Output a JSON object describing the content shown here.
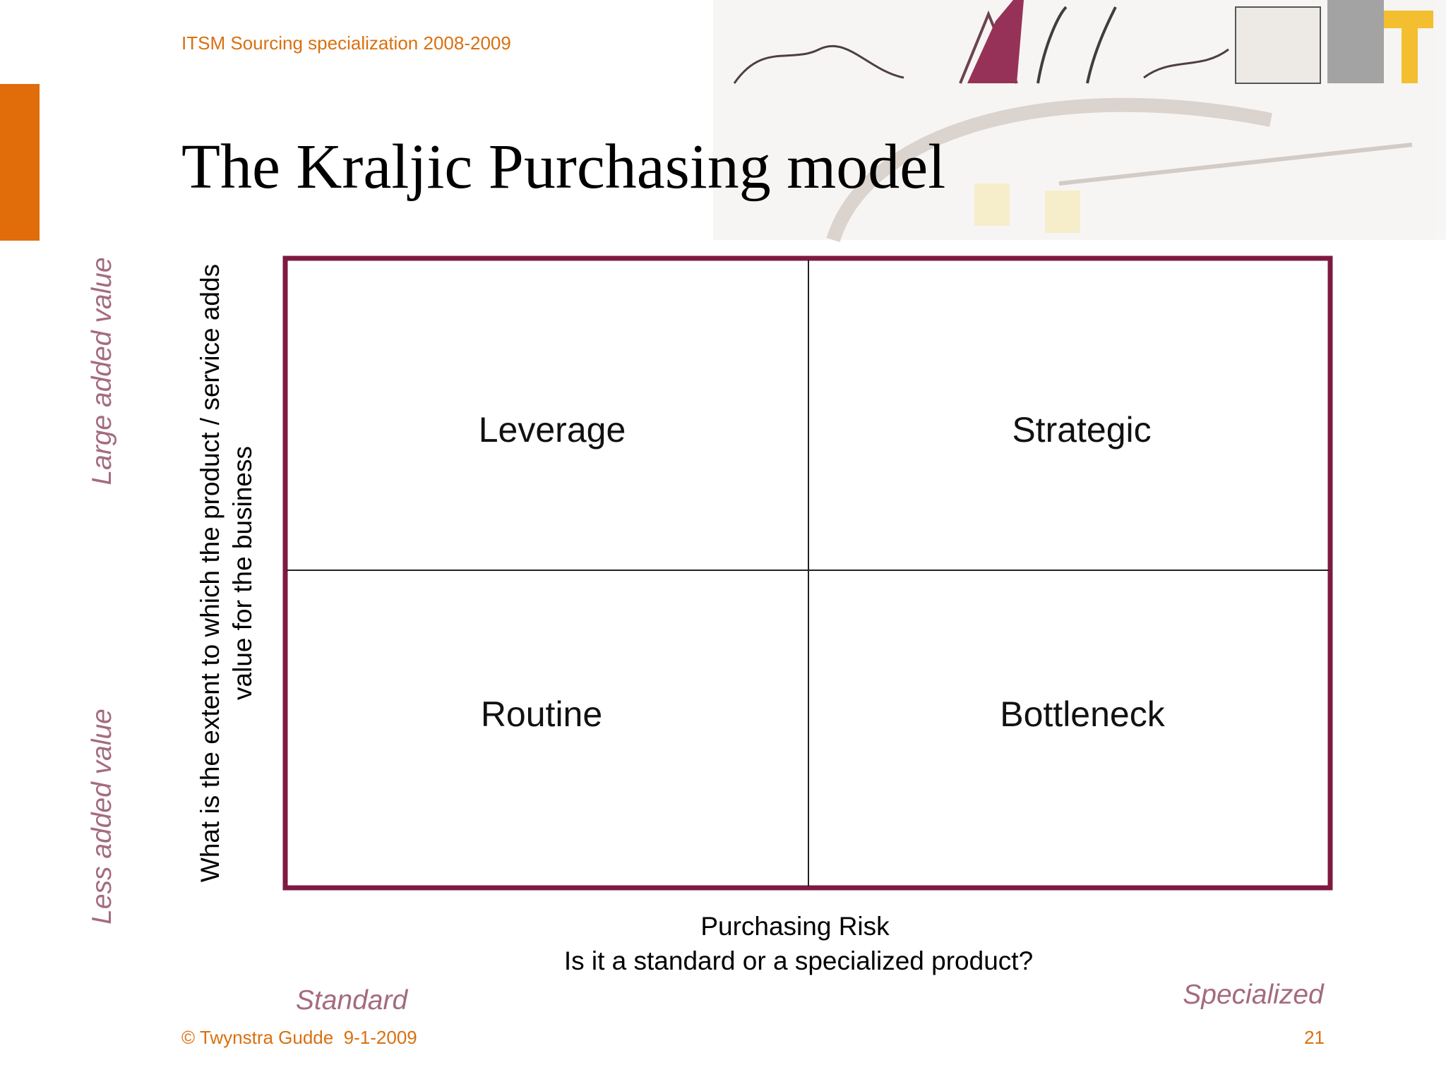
{
  "header": {
    "subtitle": "ITSM Sourcing specialization 2008-2009",
    "title": "The Kraljic Purchasing model"
  },
  "matrix": {
    "quadrants": {
      "top_left": "Leverage",
      "top_right": "Strategic",
      "bottom_left": "Routine",
      "bottom_right": "Bottleneck"
    },
    "y_axis": {
      "label_lines": [
        "What is the extent to which the product / service adds",
        "value for the business"
      ],
      "high": "Large added value",
      "low": "Less added value"
    },
    "x_axis": {
      "label_lines": [
        "Purchasing Risk",
        "Is it a standard or a specialized product?"
      ],
      "low": "Standard",
      "high": "Specialized"
    }
  },
  "footer": {
    "copyright": "© Twynstra Gudde  9-1-2009",
    "page_number": "21"
  }
}
